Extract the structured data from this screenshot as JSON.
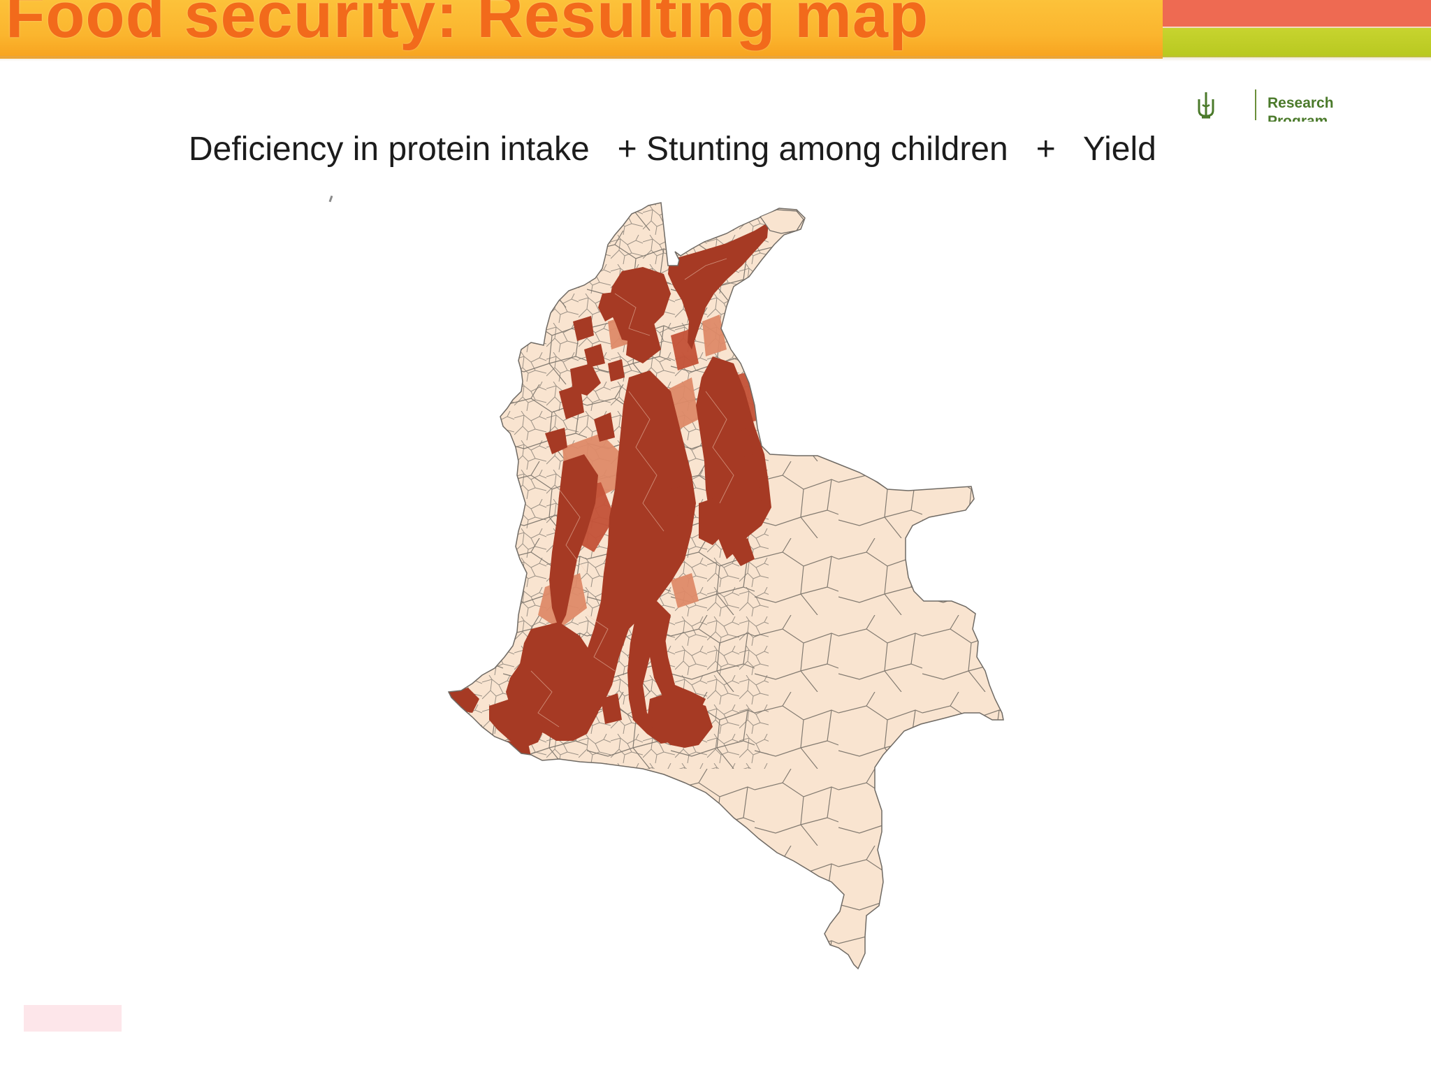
{
  "slide": {
    "title": "Food security: Resulting map",
    "subtitle_parts": [
      "Deficiency in protein intake",
      "+ Stunting among children",
      "+",
      "Yield"
    ]
  },
  "logo": {
    "text": "Research",
    "text_line2": "Program",
    "icon": "wheat-icon"
  },
  "colors": {
    "header": "#fbb52e",
    "title": "#f26a1b",
    "stripe_red": "#ee6a52",
    "stripe_green": "#c7d42f",
    "map_base": "#f9e4d0",
    "map_high": "#a63a24",
    "map_mid": "#c95a3c",
    "map_low": "#de8a68",
    "border": "#6f6a64"
  },
  "map": {
    "region": "Colombia",
    "classes": [
      {
        "level": "high",
        "color": "#a63a24"
      },
      {
        "level": "medium",
        "color": "#c95a3c"
      },
      {
        "level": "low",
        "color": "#de8a68"
      },
      {
        "level": "none",
        "color": "#f9e4d0"
      }
    ]
  }
}
